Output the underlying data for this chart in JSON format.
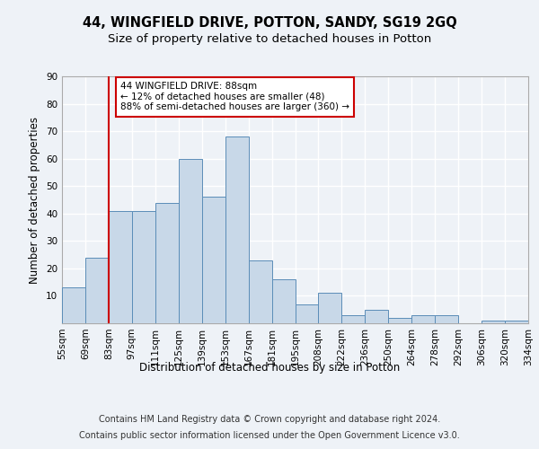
{
  "title": "44, WINGFIELD DRIVE, POTTON, SANDY, SG19 2GQ",
  "subtitle": "Size of property relative to detached houses in Potton",
  "xlabel": "Distribution of detached houses by size in Potton",
  "ylabel": "Number of detached properties",
  "bar_values": [
    13,
    24,
    41,
    41,
    44,
    60,
    46,
    68,
    23,
    16,
    7,
    11,
    3,
    5,
    2,
    3,
    3,
    0,
    1,
    1
  ],
  "bar_labels": [
    "55sqm",
    "69sqm",
    "83sqm",
    "97sqm",
    "111sqm",
    "125sqm",
    "139sqm",
    "153sqm",
    "167sqm",
    "181sqm",
    "195sqm",
    "208sqm",
    "222sqm",
    "236sqm",
    "250sqm",
    "264sqm",
    "278sqm",
    "292sqm",
    "306sqm",
    "320sqm",
    "334sqm"
  ],
  "bar_color": "#c8d8e8",
  "bar_edge_color": "#5b8db8",
  "vline_x_index": 2,
  "vline_color": "#cc0000",
  "annotation_text": "44 WINGFIELD DRIVE: 88sqm\n← 12% of detached houses are smaller (48)\n88% of semi-detached houses are larger (360) →",
  "annotation_box_color": "#ffffff",
  "annotation_box_edge": "#cc0000",
  "ylim": [
    0,
    90
  ],
  "yticks": [
    0,
    10,
    20,
    30,
    40,
    50,
    60,
    70,
    80,
    90
  ],
  "footer_line1": "Contains HM Land Registry data © Crown copyright and database right 2024.",
  "footer_line2": "Contains public sector information licensed under the Open Government Licence v3.0.",
  "background_color": "#eef2f7",
  "plot_background": "#eef2f7",
  "grid_color": "#ffffff",
  "title_fontsize": 10.5,
  "subtitle_fontsize": 9.5,
  "axis_label_fontsize": 8.5,
  "tick_fontsize": 7.5,
  "footer_fontsize": 7.0,
  "annotation_fontsize": 7.5
}
